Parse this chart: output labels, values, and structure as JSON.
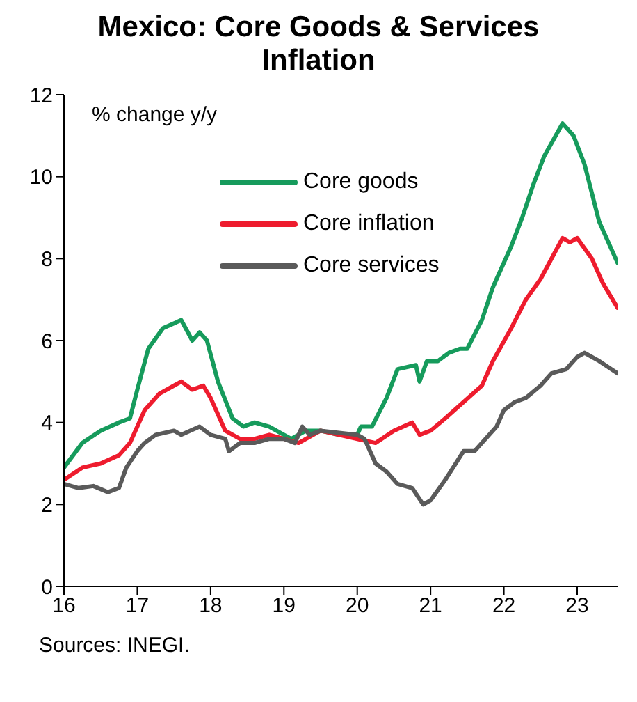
{
  "chart_data": {
    "type": "line",
    "title": "Mexico: Core Goods & Services Inflation",
    "ylabel": "% change y/y",
    "annotations": [
      "Sources: INEGI."
    ],
    "xlim": [
      16,
      23.55
    ],
    "xticks": [
      16,
      17,
      18,
      19,
      20,
      21,
      22,
      23
    ],
    "ylim": [
      0,
      12
    ],
    "yticks": [
      0,
      2,
      4,
      6,
      8,
      10,
      12
    ],
    "grid": false,
    "legend": "top",
    "marker": "none",
    "line_style": "solid",
    "series": [
      {
        "name": "Core goods",
        "color": "#169b5c",
        "x": [
          16.0,
          16.25,
          16.5,
          16.75,
          16.9,
          17.0,
          17.15,
          17.35,
          17.6,
          17.75,
          17.85,
          17.95,
          18.1,
          18.3,
          18.45,
          18.6,
          18.8,
          19.0,
          19.1,
          19.3,
          19.5,
          19.75,
          20.0,
          20.05,
          20.2,
          20.4,
          20.55,
          20.8,
          20.85,
          20.95,
          21.1,
          21.25,
          21.4,
          21.5,
          21.7,
          21.85,
          22.1,
          22.25,
          22.4,
          22.55,
          22.8,
          22.95,
          23.1,
          23.3,
          23.55
        ],
        "values": [
          2.9,
          3.5,
          3.8,
          4.0,
          4.1,
          4.8,
          5.8,
          6.3,
          6.5,
          6.0,
          6.2,
          6.0,
          5.0,
          4.1,
          3.9,
          4.0,
          3.9,
          3.7,
          3.6,
          3.8,
          3.8,
          3.7,
          3.7,
          3.9,
          3.9,
          4.6,
          5.3,
          5.4,
          5.0,
          5.5,
          5.5,
          5.7,
          5.8,
          5.8,
          6.5,
          7.3,
          8.3,
          9.0,
          9.8,
          10.5,
          11.3,
          11.0,
          10.3,
          8.9,
          7.9
        ]
      },
      {
        "name": "Core inflation",
        "color": "#ee1c2e",
        "x": [
          16.0,
          16.25,
          16.5,
          16.75,
          16.9,
          17.1,
          17.3,
          17.6,
          17.75,
          17.9,
          18.0,
          18.2,
          18.4,
          18.6,
          18.8,
          19.0,
          19.2,
          19.5,
          20.0,
          20.25,
          20.5,
          20.75,
          20.85,
          21.0,
          21.2,
          21.45,
          21.7,
          21.85,
          22.1,
          22.3,
          22.5,
          22.8,
          22.9,
          23.0,
          23.2,
          23.35,
          23.55
        ],
        "values": [
          2.6,
          2.9,
          3.0,
          3.2,
          3.5,
          4.3,
          4.7,
          5.0,
          4.8,
          4.9,
          4.6,
          3.8,
          3.6,
          3.6,
          3.7,
          3.6,
          3.5,
          3.8,
          3.6,
          3.5,
          3.8,
          4.0,
          3.7,
          3.8,
          4.1,
          4.5,
          4.9,
          5.5,
          6.3,
          7.0,
          7.5,
          8.5,
          8.4,
          8.5,
          8.0,
          7.4,
          6.8
        ]
      },
      {
        "name": "Core services",
        "color": "#5a5a5a",
        "x": [
          16.0,
          16.2,
          16.4,
          16.6,
          16.75,
          16.85,
          17.0,
          17.1,
          17.25,
          17.5,
          17.6,
          17.85,
          18.0,
          18.2,
          18.25,
          18.4,
          18.6,
          18.8,
          19.0,
          19.15,
          19.25,
          19.35,
          19.5,
          20.0,
          20.1,
          20.25,
          20.4,
          20.55,
          20.75,
          20.9,
          21.0,
          21.2,
          21.45,
          21.6,
          21.9,
          22.0,
          22.15,
          22.3,
          22.5,
          22.65,
          22.85,
          23.0,
          23.1,
          23.3,
          23.55
        ],
        "values": [
          2.5,
          2.4,
          2.45,
          2.3,
          2.4,
          2.9,
          3.3,
          3.5,
          3.7,
          3.8,
          3.7,
          3.9,
          3.7,
          3.6,
          3.3,
          3.5,
          3.5,
          3.6,
          3.6,
          3.5,
          3.9,
          3.7,
          3.8,
          3.7,
          3.6,
          3.0,
          2.8,
          2.5,
          2.4,
          2.0,
          2.1,
          2.6,
          3.3,
          3.3,
          3.9,
          4.3,
          4.5,
          4.6,
          4.9,
          5.2,
          5.3,
          5.6,
          5.7,
          5.5,
          5.2
        ]
      }
    ]
  }
}
